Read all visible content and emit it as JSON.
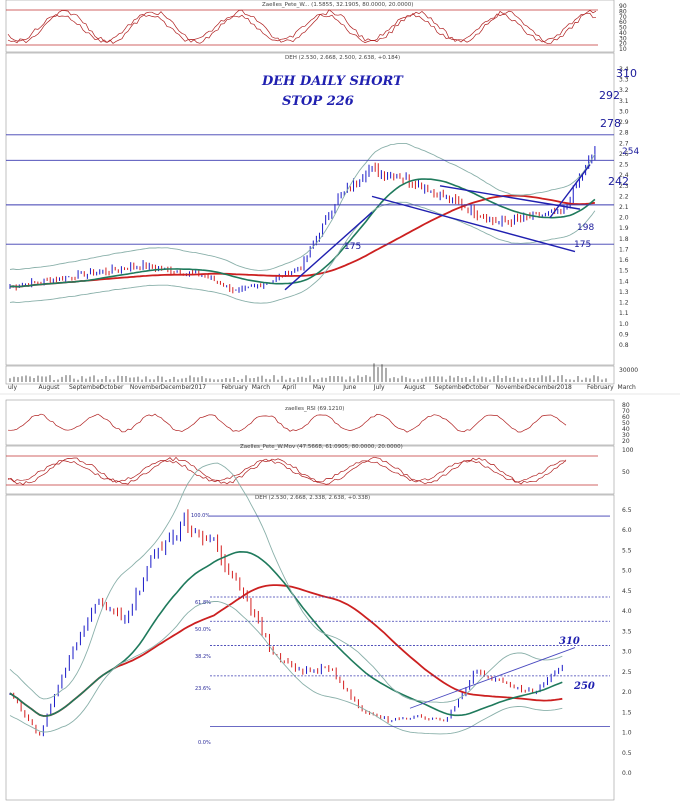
{
  "colors": {
    "up": "#1a1ac8",
    "down": "#d42020",
    "ma_long": "#cc2020",
    "ma_mid": "#1f7a5c",
    "band": "#8ab0aa",
    "level": "#3a3ab0",
    "osc": "#b02020",
    "grid_limit": "#c03030"
  },
  "top": {
    "stoch_title": "Zaelles_Pete_W... (1.5855, 32.1905, 80.0000, 20.0000)",
    "stoch_ticks": [
      "90",
      "80",
      "70",
      "60",
      "50",
      "40",
      "30",
      "20",
      "10"
    ],
    "price_title": "DEH (2.530, 2.668, 2.500, 2.638, +0.184)",
    "y_ticks": [
      "3.4",
      "3.3",
      "3.2",
      "3.1",
      "3.0",
      "2.9",
      "2.8",
      "2.7",
      "2.6",
      "2.5",
      "2.4",
      "2.3",
      "2.2",
      "2.1",
      "2.0",
      "1.9",
      "1.8",
      "1.7",
      "1.6",
      "1.5",
      "1.4",
      "1.3",
      "1.2",
      "1.1",
      "1.0",
      "0.9",
      "0.8"
    ],
    "vol_tick": "30000",
    "x_months": [
      "uly",
      "August",
      "September",
      "October",
      "November",
      "December",
      "2017",
      "February",
      "March",
      "April",
      "May",
      "June",
      "July",
      "August",
      "September",
      "October",
      "November",
      "December",
      "2018",
      "February",
      "March"
    ],
    "title_line1": "DEH DAILY SHORT",
    "title_line2": "STOP 226",
    "targets": [
      "310",
      "292",
      "278",
      "254",
      "242"
    ],
    "support_labels": [
      "198",
      "175",
      "175"
    ]
  },
  "bottom": {
    "rsi_title": "zaelles_RSI (69.1210)",
    "rsi_ticks": [
      "80",
      "70",
      "60",
      "50",
      "40",
      "30",
      "20"
    ],
    "stoch_title": "Zaelles_Pete_W.Mov (47.5668, 61.0905, 80.0000, 20.0000)",
    "stoch_ticks": [
      "100",
      "50"
    ],
    "price_title": "DEH (2.530, 2.668, 2.338, 2.638, +0.338)",
    "y_ticks": [
      "6.5",
      "6.0",
      "5.5",
      "5.0",
      "4.5",
      "4.0",
      "3.5",
      "3.0",
      "2.5",
      "2.0",
      "1.5",
      "1.0",
      "0.5",
      "0.0"
    ],
    "fib_labels": [
      "100.0%",
      "61.8%",
      "50.0%",
      "38.2%",
      "23.6%",
      "0.0%"
    ],
    "labels": [
      "310",
      "250"
    ]
  },
  "chart_data": [
    {
      "type": "line",
      "title": "DEH DAILY SHORT",
      "subtitle": "STOP 226",
      "series": [
        {
          "name": "DEH",
          "x": [
            "Jul",
            "Aug",
            "Sep",
            "Oct",
            "Nov",
            "Dec",
            "Jan 2017",
            "Feb",
            "Mar",
            "Apr",
            "May",
            "Jun",
            "Jul",
            "Aug",
            "Sep",
            "Oct",
            "Nov",
            "Dec",
            "Jan 2018"
          ],
          "values": [
            1.35,
            1.4,
            1.45,
            1.5,
            1.55,
            1.5,
            1.45,
            1.3,
            1.4,
            1.55,
            2.15,
            2.45,
            2.4,
            2.25,
            2.1,
            1.95,
            2.0,
            2.05,
            2.64
          ]
        }
      ],
      "levels": [
        2.54,
        2.78,
        2.12,
        1.75
      ],
      "targets": [
        3.1,
        2.92,
        2.78,
        2.54,
        2.42
      ],
      "ylim": [
        0.8,
        3.4
      ]
    },
    {
      "type": "line",
      "series": [
        {
          "name": "DEH",
          "x": [
            1,
            2,
            3,
            4,
            5,
            6,
            7,
            8,
            9,
            10,
            11,
            12,
            13,
            14,
            15,
            16,
            17,
            18,
            19,
            20
          ],
          "values": [
            2.0,
            0.9,
            2.8,
            4.2,
            3.8,
            5.5,
            6.2,
            5.7,
            4.5,
            3.0,
            2.5,
            2.6,
            1.6,
            1.3,
            1.4,
            1.3,
            2.5,
            2.2,
            2.0,
            2.64
          ]
        }
      ],
      "fib_levels": {
        "100.0%": 6.35,
        "61.8%": 4.35,
        "50.0%": 3.75,
        "38.2%": 3.15,
        "23.6%": 2.4,
        "0.0%": 1.15
      },
      "ylim": [
        0.0,
        6.5
      ]
    }
  ]
}
